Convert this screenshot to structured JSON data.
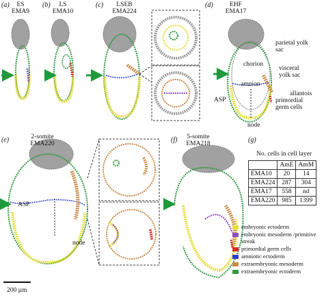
{
  "panels": [
    {
      "label": "(a)",
      "stage": "ES",
      "sample": "EMA9"
    },
    {
      "label": "(b)",
      "stage": "LS",
      "sample": "EMA10"
    },
    {
      "label": "(c)",
      "stage": "LSEB",
      "sample": "EMA224"
    },
    {
      "label": "(d)",
      "stage": "EHF",
      "sample": "EMA17",
      "annotations": [
        "parietal yolk sac",
        "chorion",
        "visceral yolk sac",
        "amnion",
        "allantois",
        "ASP",
        "primordial germ cells",
        "node"
      ]
    },
    {
      "label": "(e)",
      "stage": "2-somite",
      "sample": "EMA220",
      "annotations": [
        "ASP",
        "node"
      ]
    },
    {
      "label": "(f)",
      "stage": "5-somite",
      "sample": "EMA218"
    }
  ],
  "table": {
    "label": "(g)",
    "title": "No. cells in cell layer",
    "columns": [
      "AmE",
      "AmM"
    ],
    "rows": [
      [
        "EMA10",
        20,
        14
      ],
      [
        "EMA224",
        287,
        304
      ],
      [
        "EMA17",
        558,
        "nd"
      ],
      [
        "EMA220",
        985,
        1399
      ]
    ]
  },
  "legend": [
    {
      "label": "embryonic ectoderm",
      "color": "#e6dc3c"
    },
    {
      "label": "embryonic mesoderm /primitive streak",
      "color": "#8e4fc4"
    },
    {
      "label": "primordial germ cells",
      "color": "#d62828"
    },
    {
      "label": "amniotic ectoderm",
      "color": "#2a3fc9"
    },
    {
      "label": "extraembryonic mesoderm",
      "color": "#c98a4a"
    },
    {
      "label": "extraembryonic ectoderm",
      "color": "#2f9a3f"
    }
  ],
  "scale_bar": "200 µm"
}
